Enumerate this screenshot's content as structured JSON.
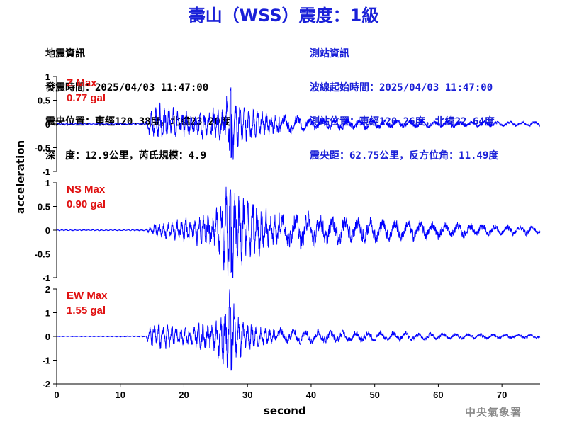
{
  "title": "壽山（WSS）震度：1級",
  "quake_info": {
    "heading": "地震資訊",
    "time": "發震時間：2025/04/03 11:47:00",
    "epicenter": "震央位置：東經120.38度，北緯23.20度",
    "depth_mag": "深　度：12.9公里，芮氏規模：4.9"
  },
  "station_info": {
    "heading": "測站資訊",
    "wave_time": "波線起始時間：2025/04/03 11:47:00",
    "location": "測站位置：東經120.26度，北緯22.64度",
    "distance": "震央距：62.75公里，反方位角：11.49度"
  },
  "credit": "中央氣象署",
  "colors": {
    "title": "#1a20d8",
    "trace": "#0000ff",
    "max_label": "#e01010"
  },
  "chart_data": {
    "type": "line",
    "xlabel": "second",
    "ylabel": "acceleration",
    "xlim": [
      0,
      76
    ],
    "xticks": [
      0,
      10,
      20,
      30,
      40,
      50,
      60,
      70
    ],
    "series": [
      {
        "component": "Z",
        "max_label": "Z Max",
        "max_value": "0.77 gal",
        "ylim": [
          -1,
          1
        ],
        "yticks": [
          -1,
          -0.5,
          0,
          0.5,
          1
        ],
        "envelope": [
          [
            0,
            0.01
          ],
          [
            14,
            0.01
          ],
          [
            14.5,
            0.2
          ],
          [
            16,
            0.35
          ],
          [
            19,
            0.25
          ],
          [
            22,
            0.2
          ],
          [
            26,
            0.3
          ],
          [
            27.3,
            0.77
          ],
          [
            28,
            0.45
          ],
          [
            30,
            0.3
          ],
          [
            33,
            0.2
          ],
          [
            40,
            0.12
          ],
          [
            50,
            0.09
          ],
          [
            60,
            0.06
          ],
          [
            76,
            0.04
          ]
        ]
      },
      {
        "component": "NS",
        "max_label": "NS Max",
        "max_value": "0.90 gal",
        "ylim": [
          -1,
          1
        ],
        "yticks": [
          -1,
          -0.5,
          0,
          0.5,
          1
        ],
        "envelope": [
          [
            0,
            0.01
          ],
          [
            14,
            0.01
          ],
          [
            15,
            0.12
          ],
          [
            20,
            0.2
          ],
          [
            24,
            0.3
          ],
          [
            26,
            0.55
          ],
          [
            27.3,
            0.9
          ],
          [
            28,
            0.8
          ],
          [
            30,
            0.6
          ],
          [
            33,
            0.35
          ],
          [
            40,
            0.3
          ],
          [
            46,
            0.25
          ],
          [
            50,
            0.22
          ],
          [
            60,
            0.15
          ],
          [
            76,
            0.07
          ]
        ]
      },
      {
        "component": "EW",
        "max_label": "EW Max",
        "max_value": "1.55 gal",
        "ylim": [
          -2,
          2
        ],
        "yticks": [
          -2,
          -1,
          0,
          1,
          2
        ],
        "envelope": [
          [
            0,
            0.01
          ],
          [
            14,
            0.02
          ],
          [
            14.5,
            0.35
          ],
          [
            16,
            0.5
          ],
          [
            20,
            0.3
          ],
          [
            25,
            0.6
          ],
          [
            27.3,
            1.55
          ],
          [
            28,
            0.9
          ],
          [
            30,
            0.5
          ],
          [
            34,
            0.3
          ],
          [
            40,
            0.25
          ],
          [
            50,
            0.18
          ],
          [
            60,
            0.12
          ],
          [
            76,
            0.07
          ]
        ]
      }
    ]
  }
}
